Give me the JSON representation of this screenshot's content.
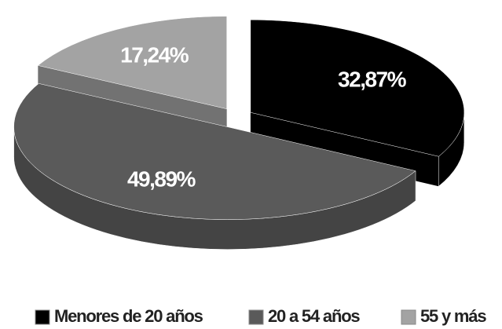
{
  "chart_data": {
    "type": "pie",
    "categories": [
      "Menores de 20 años",
      "20 a 54 años",
      "55 y más"
    ],
    "values": [
      32.87,
      49.89,
      17.24
    ],
    "value_labels": [
      "32,87%",
      "49,89%",
      "17,24%"
    ],
    "colors": [
      "#000000",
      "#5a5a5a",
      "#a3a3a3"
    ],
    "legend": "bottom"
  }
}
